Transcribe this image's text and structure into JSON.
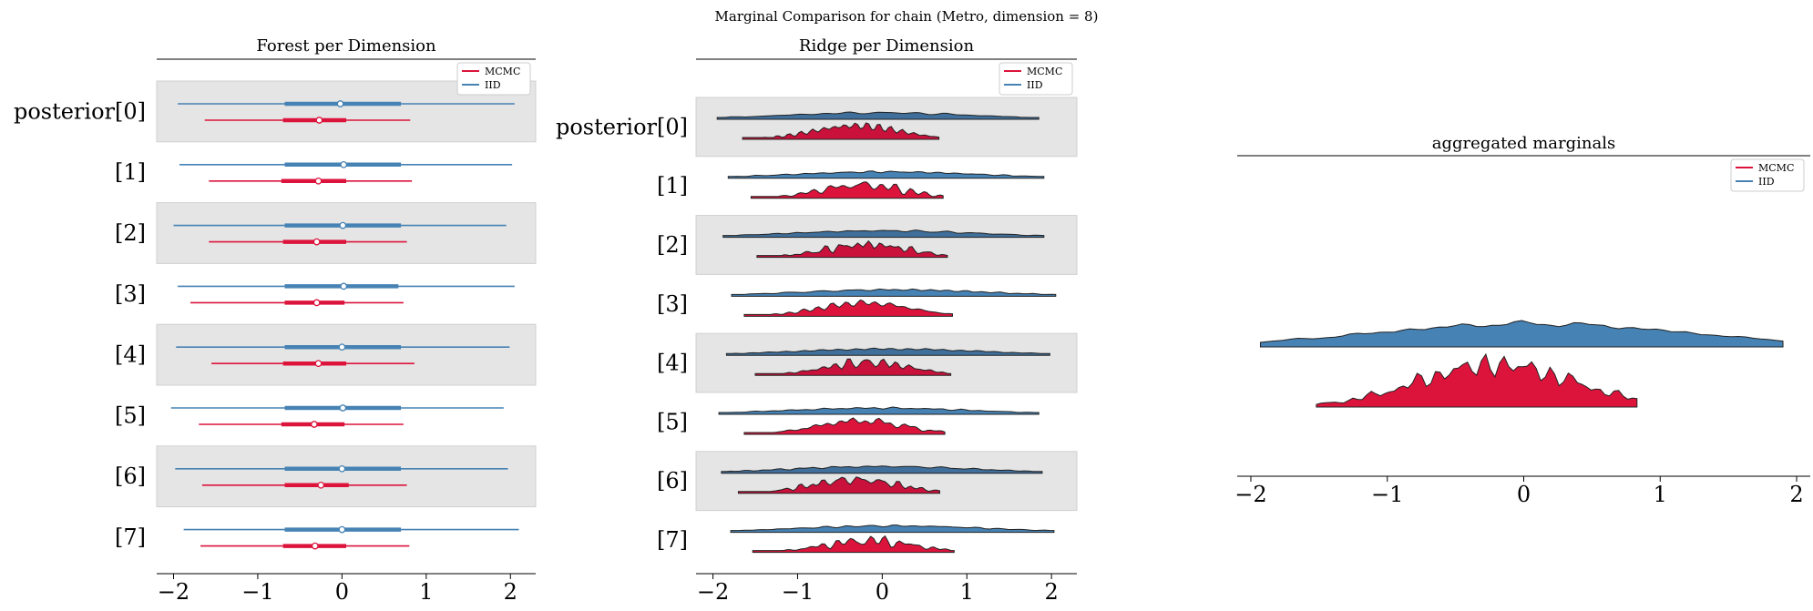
{
  "suptitle": "Marginal Comparison for chain (Metro, dimension = 8)",
  "colors": {
    "mcmc": "#dc143c",
    "iid": "#4682b4",
    "band": "#e5e5e5",
    "outline": "#222222"
  },
  "legend": {
    "mcmc": "MCMC",
    "iid": "IID"
  },
  "chart_data": [
    {
      "type": "forest",
      "title": "Forest per Dimension",
      "row_labels": [
        "posterior[0]",
        "[1]",
        "[2]",
        "[3]",
        "[4]",
        "[5]",
        "[6]",
        "[7]"
      ],
      "xticks": [
        -2,
        -1,
        0,
        1,
        2
      ],
      "xlim": [
        -2.2,
        2.3
      ],
      "legend_position": "upper right",
      "series": [
        {
          "name": "IID",
          "color": "#4682b4",
          "points": [
            {
              "lo": -1.95,
              "q1": -0.68,
              "med": -0.02,
              "q3": 0.7,
              "hi": 2.05
            },
            {
              "lo": -1.93,
              "q1": -0.68,
              "med": 0.02,
              "q3": 0.7,
              "hi": 2.02
            },
            {
              "lo": -2.0,
              "q1": -0.68,
              "med": 0.01,
              "q3": 0.7,
              "hi": 1.95
            },
            {
              "lo": -1.95,
              "q1": -0.68,
              "med": 0.02,
              "q3": 0.67,
              "hi": 2.05
            },
            {
              "lo": -1.97,
              "q1": -0.68,
              "med": 0.0,
              "q3": 0.7,
              "hi": 1.99
            },
            {
              "lo": -2.03,
              "q1": -0.68,
              "med": 0.01,
              "q3": 0.7,
              "hi": 1.92
            },
            {
              "lo": -1.98,
              "q1": -0.68,
              "med": 0.0,
              "q3": 0.7,
              "hi": 1.97
            },
            {
              "lo": -1.88,
              "q1": -0.68,
              "med": 0.0,
              "q3": 0.7,
              "hi": 2.1
            }
          ]
        },
        {
          "name": "MCMC",
          "color": "#dc143c",
          "points": [
            {
              "lo": -1.63,
              "q1": -0.7,
              "med": -0.27,
              "q3": 0.05,
              "hi": 0.81
            },
            {
              "lo": -1.58,
              "q1": -0.72,
              "med": -0.28,
              "q3": 0.05,
              "hi": 0.83
            },
            {
              "lo": -1.58,
              "q1": -0.7,
              "med": -0.3,
              "q3": 0.05,
              "hi": 0.77
            },
            {
              "lo": -1.8,
              "q1": -0.68,
              "med": -0.3,
              "q3": 0.03,
              "hi": 0.73
            },
            {
              "lo": -1.55,
              "q1": -0.7,
              "med": -0.28,
              "q3": 0.05,
              "hi": 0.86
            },
            {
              "lo": -1.7,
              "q1": -0.72,
              "med": -0.33,
              "q3": 0.03,
              "hi": 0.73
            },
            {
              "lo": -1.66,
              "q1": -0.68,
              "med": -0.25,
              "q3": 0.08,
              "hi": 0.77
            },
            {
              "lo": -1.68,
              "q1": -0.7,
              "med": -0.32,
              "q3": 0.05,
              "hi": 0.8
            }
          ]
        }
      ]
    },
    {
      "type": "ridge",
      "title": "Ridge per Dimension",
      "row_labels": [
        "posterior[0]",
        "[1]",
        "[2]",
        "[3]",
        "[4]",
        "[5]",
        "[6]",
        "[7]"
      ],
      "xticks": [
        -2,
        -1,
        0,
        1,
        2
      ],
      "xlim": [
        -2.2,
        2.3
      ],
      "legend_position": "upper right",
      "series": [
        {
          "name": "IID",
          "color": "#4682b4",
          "ranges": [
            [
              -1.95,
              1.85
            ],
            [
              -1.82,
              1.91
            ],
            [
              -1.88,
              1.91
            ],
            [
              -1.78,
              2.05
            ],
            [
              -1.84,
              1.98
            ],
            [
              -1.93,
              1.85
            ],
            [
              -1.9,
              1.89
            ],
            [
              -1.79,
              2.03
            ]
          ]
        },
        {
          "name": "MCMC",
          "color": "#dc143c",
          "ranges": [
            [
              -1.65,
              0.67
            ],
            [
              -1.55,
              0.72
            ],
            [
              -1.48,
              0.77
            ],
            [
              -1.63,
              0.83
            ],
            [
              -1.5,
              0.81
            ],
            [
              -1.63,
              0.74
            ],
            [
              -1.7,
              0.68
            ],
            [
              -1.53,
              0.85
            ]
          ]
        }
      ]
    },
    {
      "type": "ridge",
      "title": "aggregated marginals",
      "xticks": [
        -2,
        -1,
        0,
        1,
        2
      ],
      "xlim": [
        -2.1,
        2.1
      ],
      "legend_position": "upper right",
      "series": [
        {
          "name": "IID",
          "color": "#4682b4",
          "range": [
            -1.93,
            1.9
          ]
        },
        {
          "name": "MCMC",
          "color": "#dc143c",
          "range": [
            -1.52,
            0.83
          ]
        }
      ]
    }
  ]
}
